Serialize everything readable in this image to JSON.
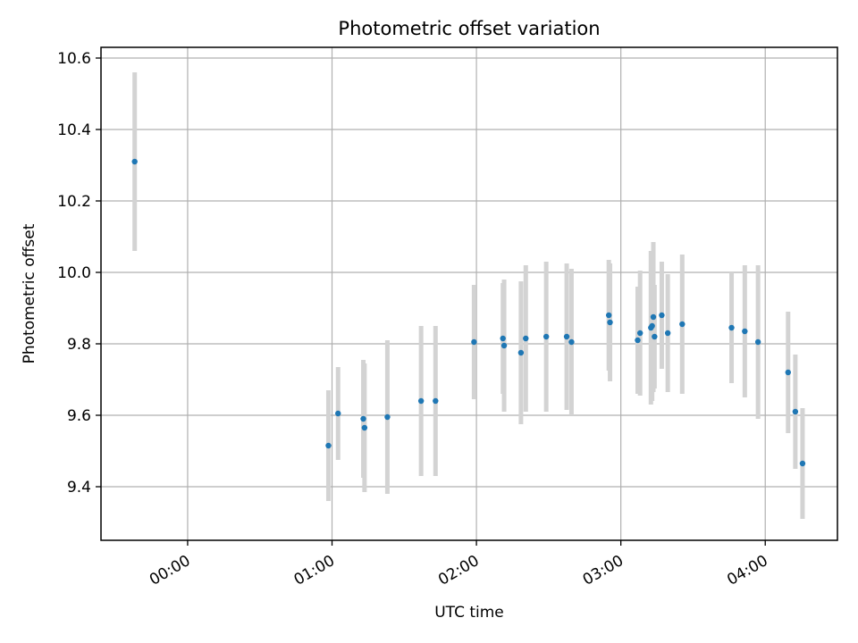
{
  "chart_data": {
    "type": "scatter",
    "title": "Photometric offset variation",
    "xlabel": "UTC time",
    "ylabel": "Photometric offset",
    "xlim": [
      "-00:36",
      "04:30"
    ],
    "ylim": [
      9.25,
      10.63
    ],
    "grid": true,
    "x_ticks": [
      "00:00",
      "01:00",
      "02:00",
      "03:00",
      "04:00"
    ],
    "y_ticks": [
      9.4,
      9.6,
      9.8,
      10.0,
      10.2,
      10.4,
      10.6
    ],
    "colors": {
      "point": "#1f77b4",
      "errorbar": "#d3d3d3",
      "grid": "#b0b0b0"
    },
    "series": [
      {
        "points": [
          {
            "x": "-00:22",
            "y": 10.31,
            "err": 0.25
          },
          {
            "x": "00:58.5",
            "y": 9.515,
            "err": 0.155
          },
          {
            "x": "01:02.5",
            "y": 9.605,
            "err": 0.13
          },
          {
            "x": "01:13",
            "y": 9.59,
            "err": 0.165
          },
          {
            "x": "01:13.5",
            "y": 9.565,
            "err": 0.18
          },
          {
            "x": "01:23",
            "y": 9.595,
            "err": 0.215
          },
          {
            "x": "01:37",
            "y": 9.64,
            "err": 0.21
          },
          {
            "x": "01:43",
            "y": 9.64,
            "err": 0.21
          },
          {
            "x": "01:59",
            "y": 9.805,
            "err": 0.16
          },
          {
            "x": "02:11",
            "y": 9.815,
            "err": 0.155
          },
          {
            "x": "02:11.5",
            "y": 9.795,
            "err": 0.185
          },
          {
            "x": "02:18.5",
            "y": 9.775,
            "err": 0.2
          },
          {
            "x": "02:20.5",
            "y": 9.815,
            "err": 0.205
          },
          {
            "x": "02:29",
            "y": 9.82,
            "err": 0.21
          },
          {
            "x": "02:37.5",
            "y": 9.82,
            "err": 0.205
          },
          {
            "x": "02:39.5",
            "y": 9.805,
            "err": 0.205
          },
          {
            "x": "02:55",
            "y": 9.88,
            "err": 0.155
          },
          {
            "x": "02:55.5",
            "y": 9.86,
            "err": 0.165
          },
          {
            "x": "03:07",
            "y": 9.81,
            "err": 0.15
          },
          {
            "x": "03:08",
            "y": 9.83,
            "err": 0.175
          },
          {
            "x": "03:12.5",
            "y": 9.845,
            "err": 0.215
          },
          {
            "x": "03:13",
            "y": 9.85,
            "err": 0.21
          },
          {
            "x": "03:13.5",
            "y": 9.875,
            "err": 0.21
          },
          {
            "x": "03:14",
            "y": 9.82,
            "err": 0.145
          },
          {
            "x": "03:17",
            "y": 9.88,
            "err": 0.15
          },
          {
            "x": "03:19.5",
            "y": 9.83,
            "err": 0.165
          },
          {
            "x": "03:25.5",
            "y": 9.855,
            "err": 0.195
          },
          {
            "x": "03:46",
            "y": 9.845,
            "err": 0.155
          },
          {
            "x": "03:51.5",
            "y": 9.835,
            "err": 0.185
          },
          {
            "x": "03:57",
            "y": 9.805,
            "err": 0.215
          },
          {
            "x": "04:09.5",
            "y": 9.72,
            "err": 0.17
          },
          {
            "x": "04:12.5",
            "y": 9.61,
            "err": 0.16
          },
          {
            "x": "04:15.5",
            "y": 9.465,
            "err": 0.155
          }
        ]
      }
    ]
  }
}
